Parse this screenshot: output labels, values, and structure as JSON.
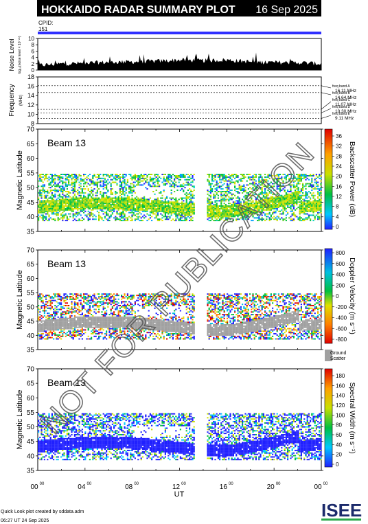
{
  "header": {
    "title": "HOKKAIDO RADAR SUMMARY PLOT",
    "date": "16 Sep 2025",
    "cpid_label": "CPID:",
    "cpid_value": "151"
  },
  "noise_panel": {
    "ylabel": "Noise Level",
    "ylabel_sub": "log₁₀(noise level × 10⁻²⁶)",
    "yticks": [
      "0",
      "2",
      "4",
      "6",
      "8",
      "10"
    ]
  },
  "freq_panel": {
    "ylabel": "Frequency",
    "ylabel_unit": "(MHz)",
    "yticks": [
      "8",
      "10",
      "12",
      "14",
      "16",
      "18"
    ],
    "bands": [
      {
        "label": "freq band A",
        "value": "16.11 MHz"
      },
      {
        "label": "freq band B",
        "value": "14.64 MHz"
      },
      {
        "label": "freq band C",
        "value": "11.07 MHz"
      },
      {
        "label": "freq band D",
        "value": "10.30 MHz"
      },
      {
        "label": "freq band E",
        "value": "9.11 MHz"
      }
    ]
  },
  "panels": [
    {
      "beam": "Beam 13",
      "ylabel": "Magnetic Latitude",
      "yticks": [
        "35",
        "40",
        "45",
        "50",
        "55",
        "60",
        "65",
        "70"
      ],
      "cbar_label": "Backscatter Power (dB)",
      "cbar_ticks": [
        "0",
        "4",
        "8",
        "12",
        "16",
        "20",
        "24",
        "28",
        "32",
        "36"
      ]
    },
    {
      "beam": "Beam 13",
      "ylabel": "Magnetic Latitude",
      "yticks": [
        "35",
        "40",
        "45",
        "50",
        "55",
        "60",
        "65",
        "70"
      ],
      "cbar_label": "Doppler Velocity (m s⁻¹)",
      "cbar_ticks": [
        "800",
        "600",
        "400",
        "200",
        "0",
        "-200",
        "-400",
        "-600",
        "-800"
      ],
      "ground_scatter_label": [
        "Ground",
        "Scatter"
      ]
    },
    {
      "beam": "Beam 13",
      "ylabel": "Magnetic Latitude",
      "yticks": [
        "35",
        "40",
        "45",
        "50",
        "55",
        "60",
        "65",
        "70"
      ],
      "cbar_label": "Spectral Width (m s⁻¹)",
      "cbar_ticks": [
        "0",
        "20",
        "40",
        "60",
        "80",
        "100",
        "120",
        "140",
        "160",
        "180"
      ]
    }
  ],
  "xaxis": {
    "label": "UT",
    "ticks": [
      {
        "h": "00",
        "m": "00"
      },
      {
        "h": "04",
        "m": "00"
      },
      {
        "h": "08",
        "m": "00"
      },
      {
        "h": "12",
        "m": "00"
      },
      {
        "h": "16",
        "m": "00"
      },
      {
        "h": "20",
        "m": "00"
      },
      {
        "h": "00",
        "m": "00"
      }
    ]
  },
  "footer": {
    "credit": "Quick Look plot created by sddata.adm",
    "timestamp": "06:27 UT 24 Sep 2025",
    "logo": "ISEE"
  },
  "watermark": "NOT FOR PUBLICATION",
  "colors": {
    "cpid_bar": "#3030ff",
    "ground_scatter": "#a0a0a0"
  },
  "chart_data": [
    {
      "type": "area",
      "title": "",
      "ylabel": "Noise Level",
      "xlabel": "",
      "x_range_hours": [
        0,
        24
      ],
      "ylim": [
        0,
        10
      ],
      "x": [
        0,
        2,
        4,
        6,
        8,
        10,
        12,
        14,
        16,
        18,
        20,
        22,
        24
      ],
      "values": [
        1.5,
        2.0,
        2.2,
        2.5,
        2.6,
        2.8,
        3.2,
        3.0,
        3.2,
        2.6,
        2.4,
        2.4,
        2.0
      ]
    },
    {
      "type": "line",
      "title": "",
      "ylabel": "Frequency",
      "ylim": [
        8,
        18
      ],
      "series": [
        {
          "name": "freq band A",
          "values": [
            16.11,
            16.11
          ]
        },
        {
          "name": "freq band B",
          "values": [
            14.64,
            14.64
          ]
        },
        {
          "name": "freq band C",
          "values": [
            11.07,
            11.07
          ]
        },
        {
          "name": "freq band D",
          "values": [
            10.3,
            10.3
          ]
        },
        {
          "name": "freq band E",
          "values": [
            9.11,
            9.11
          ]
        }
      ]
    },
    {
      "type": "heatmap",
      "title": "Beam 13",
      "ylabel": "Magnetic Latitude",
      "xlabel": "UT",
      "ylim": [
        35,
        70
      ],
      "x_range_hours": [
        0,
        24
      ],
      "quantity": "Backscatter Power (dB)",
      "zlim": [
        0,
        36
      ],
      "data_gap_hours": [
        13.2,
        14.2
      ]
    },
    {
      "type": "heatmap",
      "title": "Beam 13",
      "ylabel": "Magnetic Latitude",
      "xlabel": "UT",
      "ylim": [
        35,
        70
      ],
      "x_range_hours": [
        0,
        24
      ],
      "quantity": "Doppler Velocity (m s⁻¹)",
      "zlim": [
        -800,
        800
      ],
      "data_gap_hours": [
        13.2,
        14.2
      ]
    },
    {
      "type": "heatmap",
      "title": "Beam 13",
      "ylabel": "Magnetic Latitude",
      "xlabel": "UT",
      "ylim": [
        35,
        70
      ],
      "x_range_hours": [
        0,
        24
      ],
      "quantity": "Spectral Width (m s⁻¹)",
      "zlim": [
        0,
        180
      ],
      "data_gap_hours": [
        13.2,
        14.2
      ]
    }
  ]
}
